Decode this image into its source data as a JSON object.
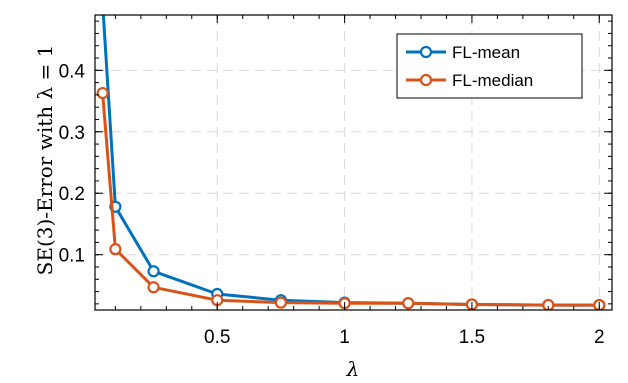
{
  "chart_data": {
    "type": "line",
    "title": "",
    "xlabel": "λ",
    "ylabel": "SE(3)-Error with λ = 1",
    "xlim": [
      0.02,
      2.05
    ],
    "ylim": [
      0.01,
      0.49
    ],
    "x_ticks": [
      {
        "value": 0.5,
        "label": "0.5"
      },
      {
        "value": 1,
        "label": "1"
      },
      {
        "value": 1.5,
        "label": "1.5"
      },
      {
        "value": 2,
        "label": "2"
      }
    ],
    "y_ticks": [
      {
        "value": 0.1,
        "label": "0.1"
      },
      {
        "value": 0.2,
        "label": "0.2"
      },
      {
        "value": 0.3,
        "label": "0.3"
      },
      {
        "value": 0.4,
        "label": "0.4"
      }
    ],
    "x_minor_step": 0.1,
    "y_minor_step": 0.02,
    "grid": true,
    "legend_position": "top-right",
    "series": [
      {
        "name": "FL-mean",
        "color": "#0072BD",
        "marker": "circle",
        "x": [
          0.05,
          0.1,
          0.25,
          0.5,
          0.75,
          1.0,
          1.25,
          1.5,
          1.8,
          2.0
        ],
        "y": [
          0.51,
          0.178,
          0.073,
          0.036,
          0.026,
          0.022,
          0.021,
          0.019,
          0.018,
          0.018
        ]
      },
      {
        "name": "FL-median",
        "color": "#D95319",
        "marker": "circle",
        "x": [
          0.05,
          0.1,
          0.25,
          0.5,
          0.75,
          1.0,
          1.25,
          1.5,
          1.8,
          2.0
        ],
        "y": [
          0.363,
          0.109,
          0.047,
          0.026,
          0.022,
          0.021,
          0.021,
          0.019,
          0.018,
          0.018
        ]
      }
    ]
  }
}
